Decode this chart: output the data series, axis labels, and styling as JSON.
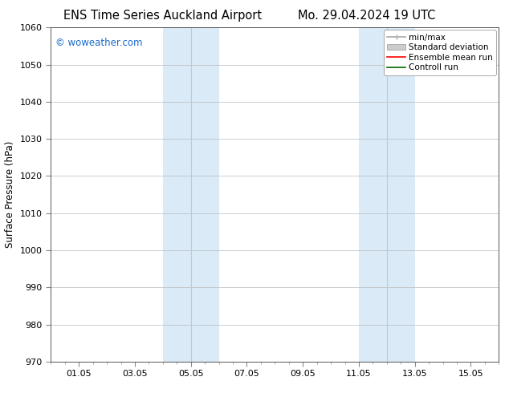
{
  "title_left": "ENS Time Series Auckland Airport",
  "title_right": "Mo. 29.04.2024 19 UTC",
  "ylabel": "Surface Pressure (hPa)",
  "watermark": "© woweather.com",
  "watermark_color": "#1a6bcc",
  "ylim": [
    970,
    1060
  ],
  "ytick_step": 10,
  "xtick_labels": [
    "01.05",
    "03.05",
    "05.05",
    "07.05",
    "09.05",
    "11.05",
    "13.05",
    "15.05"
  ],
  "xtick_positions": [
    1,
    3,
    5,
    7,
    9,
    11,
    13,
    15
  ],
  "xlim": [
    0,
    16
  ],
  "shaded_bands": [
    {
      "x_start": 4.0,
      "x_end": 6.0,
      "color": "#daeaf7"
    },
    {
      "x_start": 11.0,
      "x_end": 13.0,
      "color": "#daeaf7"
    }
  ],
  "shaded_bands_inner": [
    {
      "x_start": 4.5,
      "x_end": 5.5,
      "color": "#c5ddf0"
    },
    {
      "x_start": 11.5,
      "x_end": 12.5,
      "color": "#c5ddf0"
    }
  ],
  "legend_entries": [
    {
      "label": "min/max",
      "color": "#aaaaaa",
      "lw": 1.2
    },
    {
      "label": "Standard deviation",
      "color": "#cccccc",
      "lw": 6
    },
    {
      "label": "Ensemble mean run",
      "color": "#ff0000",
      "lw": 1.2
    },
    {
      "label": "Controll run",
      "color": "#006600",
      "lw": 1.2
    }
  ],
  "bg_color": "#ffffff",
  "plot_bg_color": "#ffffff",
  "grid_color": "#bbbbbb",
  "border_color": "#555555",
  "title_fontsize": 10.5,
  "axis_label_fontsize": 8.5,
  "tick_fontsize": 8,
  "legend_fontsize": 7.5,
  "watermark_fontsize": 8.5
}
